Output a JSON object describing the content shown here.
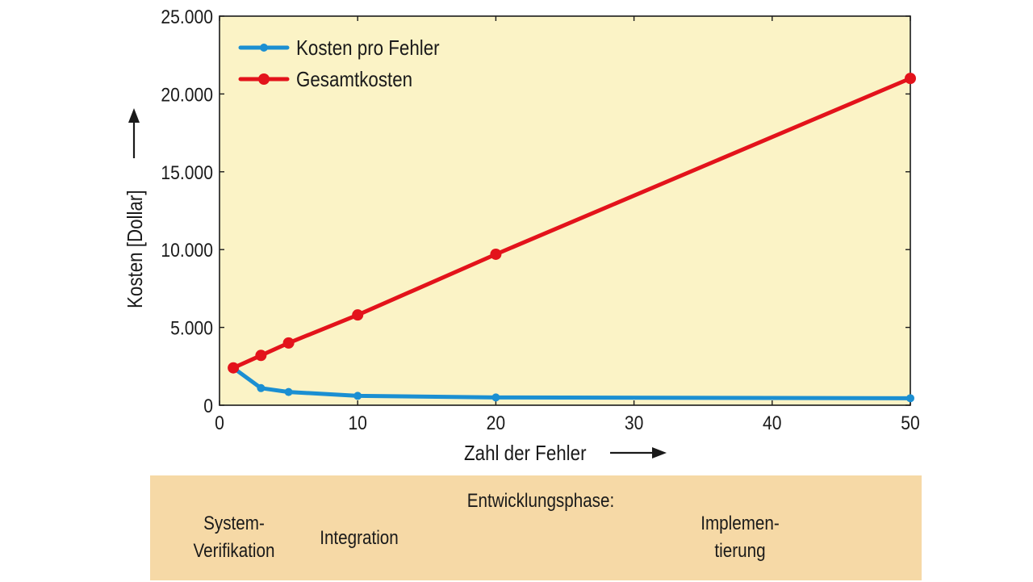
{
  "chart_data": {
    "type": "line",
    "xlabel": "Zahl der Fehler",
    "ylabel": "Kosten [Dollar]",
    "xlim": [
      0,
      50
    ],
    "ylim": [
      0,
      25000
    ],
    "xticks": [
      "0",
      "10",
      "20",
      "30",
      "40",
      "50"
    ],
    "yticks": [
      "0",
      "5.000",
      "10.000",
      "15.000",
      "20.000",
      "25.000"
    ],
    "grid": false,
    "legend_position": "top-left",
    "background_color": "#fbf3c6",
    "series": [
      {
        "name": "Kosten pro Fehler",
        "color": "#1b8fd2",
        "points": [
          [
            1,
            2400
          ],
          [
            3,
            1100
          ],
          [
            5,
            850
          ],
          [
            10,
            600
          ],
          [
            20,
            500
          ],
          [
            50,
            450
          ]
        ]
      },
      {
        "name": "Gesamtkosten",
        "color": "#e3131b",
        "points": [
          [
            1,
            2400
          ],
          [
            3,
            3200
          ],
          [
            5,
            4000
          ],
          [
            10,
            5800
          ],
          [
            20,
            9700
          ],
          [
            50,
            21000
          ]
        ]
      }
    ]
  },
  "phase_panel": {
    "heading": "Entwicklungsphase:",
    "system_line1": "System-",
    "system_line2": "Verifikation",
    "integration": "Integration",
    "implementation_line1": "Implemen-",
    "implementation_line2": "tierung",
    "background_color": "#f6d9a6"
  }
}
